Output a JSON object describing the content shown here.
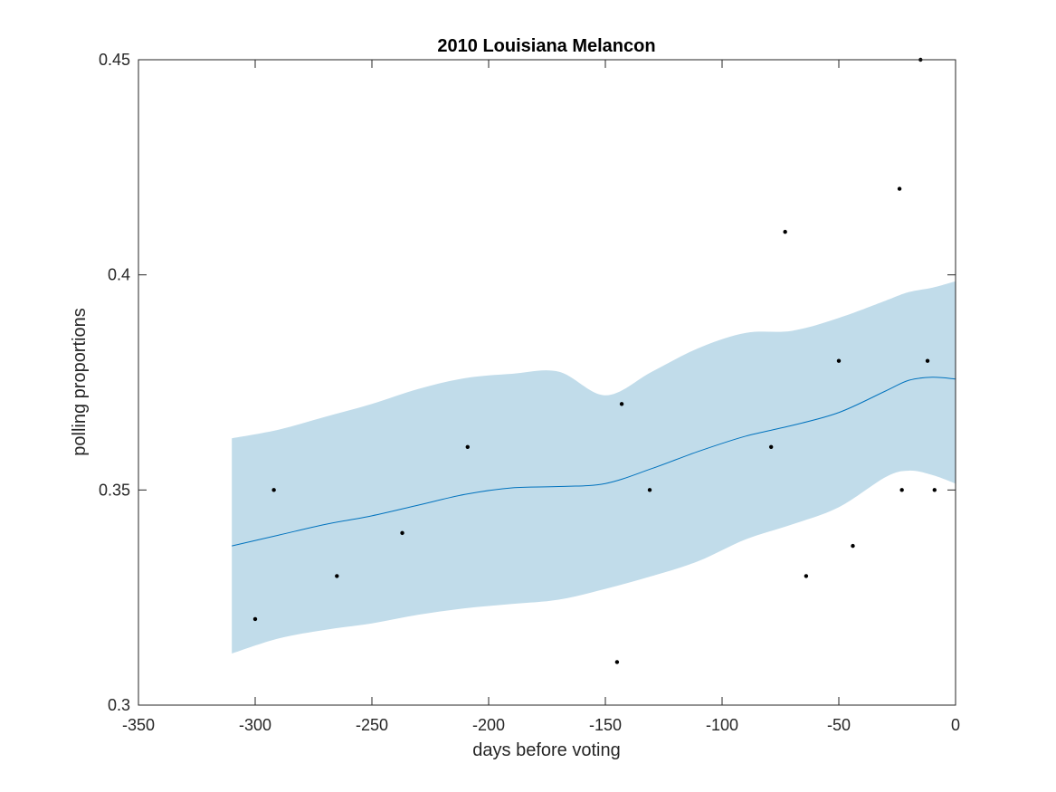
{
  "chart_data": {
    "type": "line",
    "title": "2010 Louisiana Melancon",
    "xlabel": "days before voting",
    "ylabel": "polling proportions",
    "xlim": [
      -350,
      0
    ],
    "ylim": [
      0.3,
      0.45
    ],
    "xticks": [
      -350,
      -300,
      -250,
      -200,
      -150,
      -100,
      -50,
      0
    ],
    "yticks": [
      0.3,
      0.35,
      0.4,
      0.45
    ],
    "xtick_labels": [
      "-350",
      "-300",
      "-250",
      "-200",
      "-150",
      "-100",
      "-50",
      "0"
    ],
    "ytick_labels": [
      "0.3",
      "0.35",
      "0.4",
      "0.45"
    ],
    "grid": false,
    "colors": {
      "band": "#c1dcea",
      "trend": "#0072bd",
      "points": "#000000",
      "axes": "#262626"
    },
    "trend": {
      "x": [
        -310,
        -290,
        -270,
        -250,
        -230,
        -210,
        -190,
        -170,
        -150,
        -130,
        -110,
        -90,
        -70,
        -50,
        -30,
        -20,
        -10,
        0
      ],
      "mean": [
        0.337,
        0.3395,
        0.342,
        0.344,
        0.3465,
        0.349,
        0.3505,
        0.3508,
        0.3515,
        0.355,
        0.359,
        0.3625,
        0.365,
        0.368,
        0.373,
        0.3755,
        0.3762,
        0.3758
      ],
      "upper": [
        0.362,
        0.364,
        0.367,
        0.37,
        0.3735,
        0.376,
        0.377,
        0.3775,
        0.372,
        0.3775,
        0.383,
        0.3865,
        0.387,
        0.39,
        0.394,
        0.396,
        0.397,
        0.3985
      ],
      "lower": [
        0.312,
        0.3155,
        0.3175,
        0.319,
        0.321,
        0.3225,
        0.3235,
        0.3245,
        0.327,
        0.33,
        0.3335,
        0.3385,
        0.342,
        0.346,
        0.353,
        0.3545,
        0.3535,
        0.3515
      ]
    },
    "points": {
      "x": [
        -300,
        -292,
        -265,
        -237,
        -209,
        -145,
        -143,
        -131,
        -79,
        -73,
        -64,
        -50,
        -44,
        -24,
        -23,
        -15,
        -12,
        -9
      ],
      "y": [
        0.32,
        0.35,
        0.33,
        0.34,
        0.36,
        0.31,
        0.37,
        0.35,
        0.36,
        0.41,
        0.33,
        0.38,
        0.337,
        0.42,
        0.35,
        0.45,
        0.38,
        0.35
      ]
    }
  }
}
